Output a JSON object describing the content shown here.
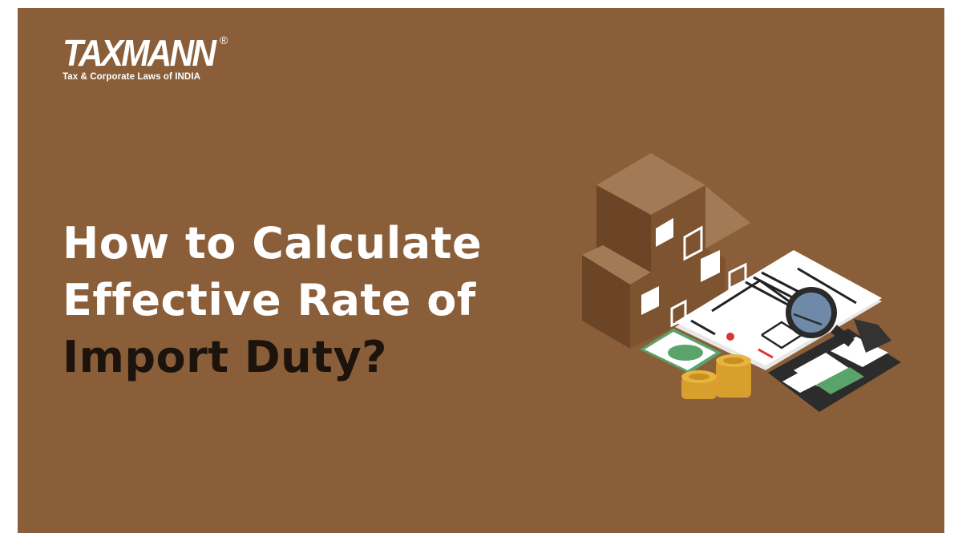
{
  "logo": {
    "name": "TAXMANN",
    "registered": "®",
    "tagline": "Tax & Corporate Laws of INDIA"
  },
  "title": {
    "lines": [
      "How to Calculate",
      "Effective Rate of",
      "Import Duty?"
    ]
  },
  "colors": {
    "background": "#8a5e38",
    "title_light": "#ffffff",
    "title_dark": "#1b130c"
  },
  "illustration": {
    "icons": [
      "cardboard-boxes-icon",
      "invoice-document-icon",
      "magnifying-glass-icon",
      "banknote-icon",
      "coin-stack-icon",
      "calculator-icon"
    ]
  }
}
